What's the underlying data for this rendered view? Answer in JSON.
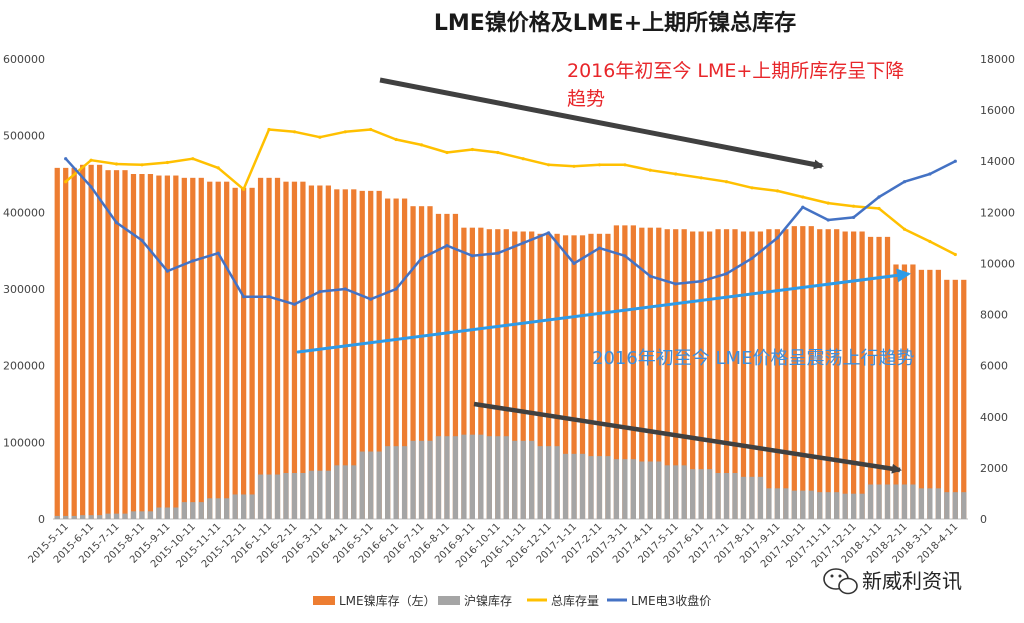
{
  "chart_data": {
    "type": "bar+line",
    "title": "LME镍价格及LME+上期所镍总库存",
    "left_axis": {
      "ylim": [
        0,
        600000
      ],
      "ticks": [
        "0",
        "100000",
        "200000",
        "300000",
        "400000",
        "500000",
        "600000"
      ]
    },
    "right_axis": {
      "ylim": [
        0,
        18000
      ],
      "ticks": [
        "0",
        "2000",
        "4000",
        "6000",
        "8000",
        "10000",
        "12000",
        "14000",
        "16000",
        "18000"
      ]
    },
    "x_ticks": [
      "2015-5-11",
      "2015-6-11",
      "2015-7-11",
      "2015-8-11",
      "2015-9-11",
      "2015-10-11",
      "2015-11-11",
      "2015-12-11",
      "2016-1-11",
      "2016-2-11",
      "2016-3-11",
      "2016-4-11",
      "2016-5-11",
      "2016-6-11",
      "2016-7-11",
      "2016-8-11",
      "2016-9-11",
      "2016-10-11",
      "2016-11-11",
      "2016-12-11",
      "2017-1-11",
      "2017-2-11",
      "2017-3-11",
      "2017-4-11",
      "2017-5-11",
      "2017-6-11",
      "2017-7-11",
      "2017-8-11",
      "2017-9-11",
      "2017-10-11",
      "2017-11-11",
      "2017-12-11",
      "2018-1-11",
      "2018-2-11",
      "2018-3-11",
      "2018-4-11"
    ],
    "series": [
      {
        "name": "LME镍库存（左）",
        "type": "bar",
        "axis": "left",
        "color": "#ed7d31",
        "values": [
          458000,
          462000,
          455000,
          450000,
          448000,
          445000,
          440000,
          432000,
          445000,
          440000,
          435000,
          430000,
          428000,
          418000,
          408000,
          398000,
          380000,
          378000,
          375000,
          372000,
          370000,
          372000,
          383000,
          380000,
          378000,
          375000,
          378000,
          375000,
          378000,
          382000,
          378000,
          375000,
          368000,
          332000,
          325000,
          312000
        ]
      },
      {
        "name": "沪镍库存",
        "type": "bar",
        "axis": "left",
        "color": "#a5a5a5",
        "values": [
          4000,
          5000,
          7000,
          10000,
          15000,
          22000,
          27000,
          32000,
          58000,
          60000,
          63000,
          70000,
          88000,
          95000,
          102000,
          108000,
          110000,
          108000,
          102000,
          95000,
          85000,
          82000,
          78000,
          75000,
          70000,
          65000,
          60000,
          55000,
          40000,
          37000,
          35000,
          33000,
          45000,
          45000,
          40000,
          35000
        ]
      },
      {
        "name": "总库存量",
        "type": "line",
        "axis": "left",
        "color": "#ffc000",
        "values": [
          440000,
          468000,
          463000,
          462000,
          465000,
          470000,
          458000,
          430000,
          508000,
          505000,
          498000,
          505000,
          508000,
          495000,
          488000,
          478000,
          482000,
          478000,
          470000,
          462000,
          460000,
          462000,
          462000,
          455000,
          450000,
          445000,
          440000,
          432000,
          428000,
          420000,
          412000,
          408000,
          405000,
          378000,
          362000,
          345000
        ]
      },
      {
        "name": "LME电3收盘价",
        "type": "line",
        "axis": "right",
        "color": "#4472c4",
        "values": [
          14100,
          13000,
          11600,
          10900,
          9700,
          10100,
          10400,
          8700,
          8700,
          8400,
          8900,
          9000,
          8600,
          9000,
          10200,
          10700,
          10300,
          10400,
          10800,
          11200,
          10000,
          10600,
          10300,
          9500,
          9200,
          9300,
          9600,
          10200,
          11000,
          12200,
          11700,
          11800,
          12600,
          13200,
          13500,
          14000
        ]
      }
    ]
  },
  "legend": [
    {
      "label": "LME镍库存（左）",
      "color": "#ed7d31",
      "kind": "bar"
    },
    {
      "label": "沪镍库存",
      "color": "#a5a5a5",
      "kind": "bar"
    },
    {
      "label": "总库存量",
      "color": "#ffc000",
      "kind": "line"
    },
    {
      "label": "LME电3收盘价",
      "color": "#4472c4",
      "kind": "line"
    }
  ],
  "annotations": {
    "red_line1": "2016年初至今 LME+上期所库存呈下降",
    "red_line2": "趋势",
    "blue": "2016年初至今 LME价格呈震荡上行趋势"
  },
  "watermark": {
    "text": "新威利资讯",
    "icon": "wechat-icon"
  }
}
